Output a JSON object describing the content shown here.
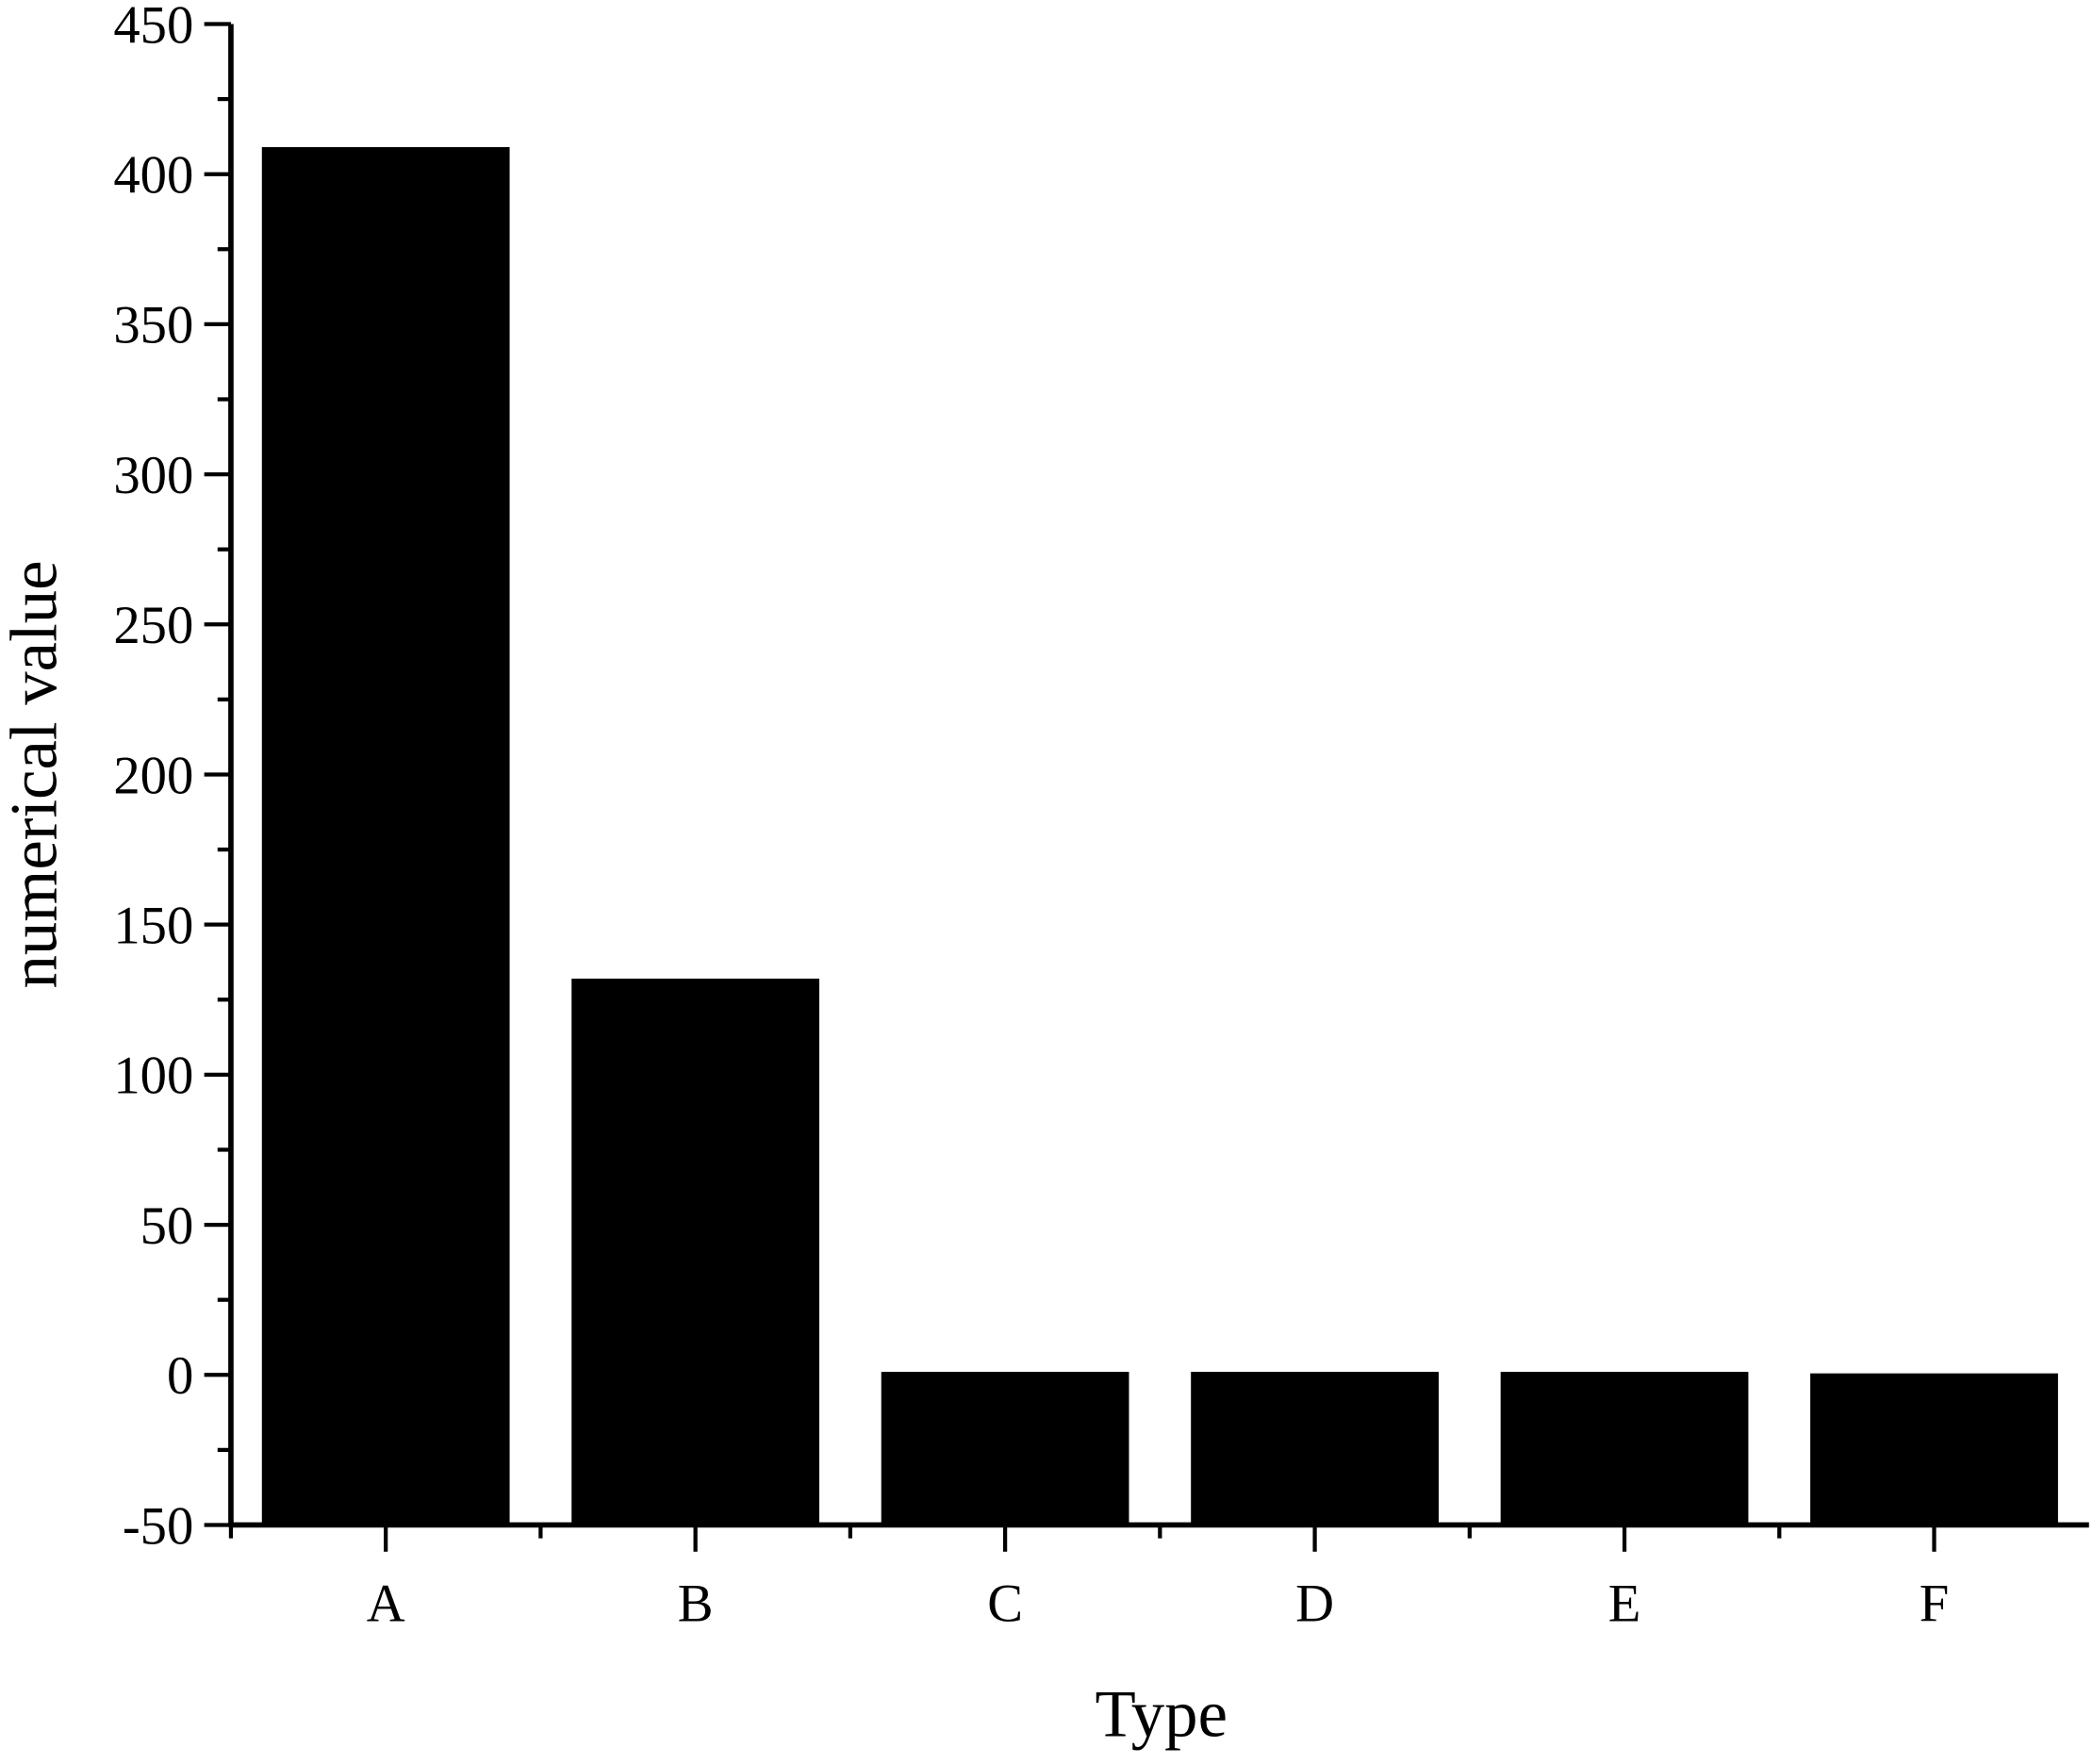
{
  "chart_data": {
    "type": "bar",
    "x_label": "Type",
    "y_label": "numerical value",
    "categories": [
      "A",
      "B",
      "C",
      "D",
      "E",
      "F"
    ],
    "values": [
      409,
      132,
      1,
      1,
      1,
      0.5
    ],
    "color": "#000000",
    "ylim": [
      -50,
      450
    ],
    "yticks": [
      -50,
      0,
      50,
      100,
      150,
      200,
      250,
      300,
      350,
      400,
      450
    ],
    "minor_yticks": [
      -25,
      25,
      75,
      125,
      175,
      225,
      275,
      325,
      375,
      425
    ],
    "grid": false
  }
}
